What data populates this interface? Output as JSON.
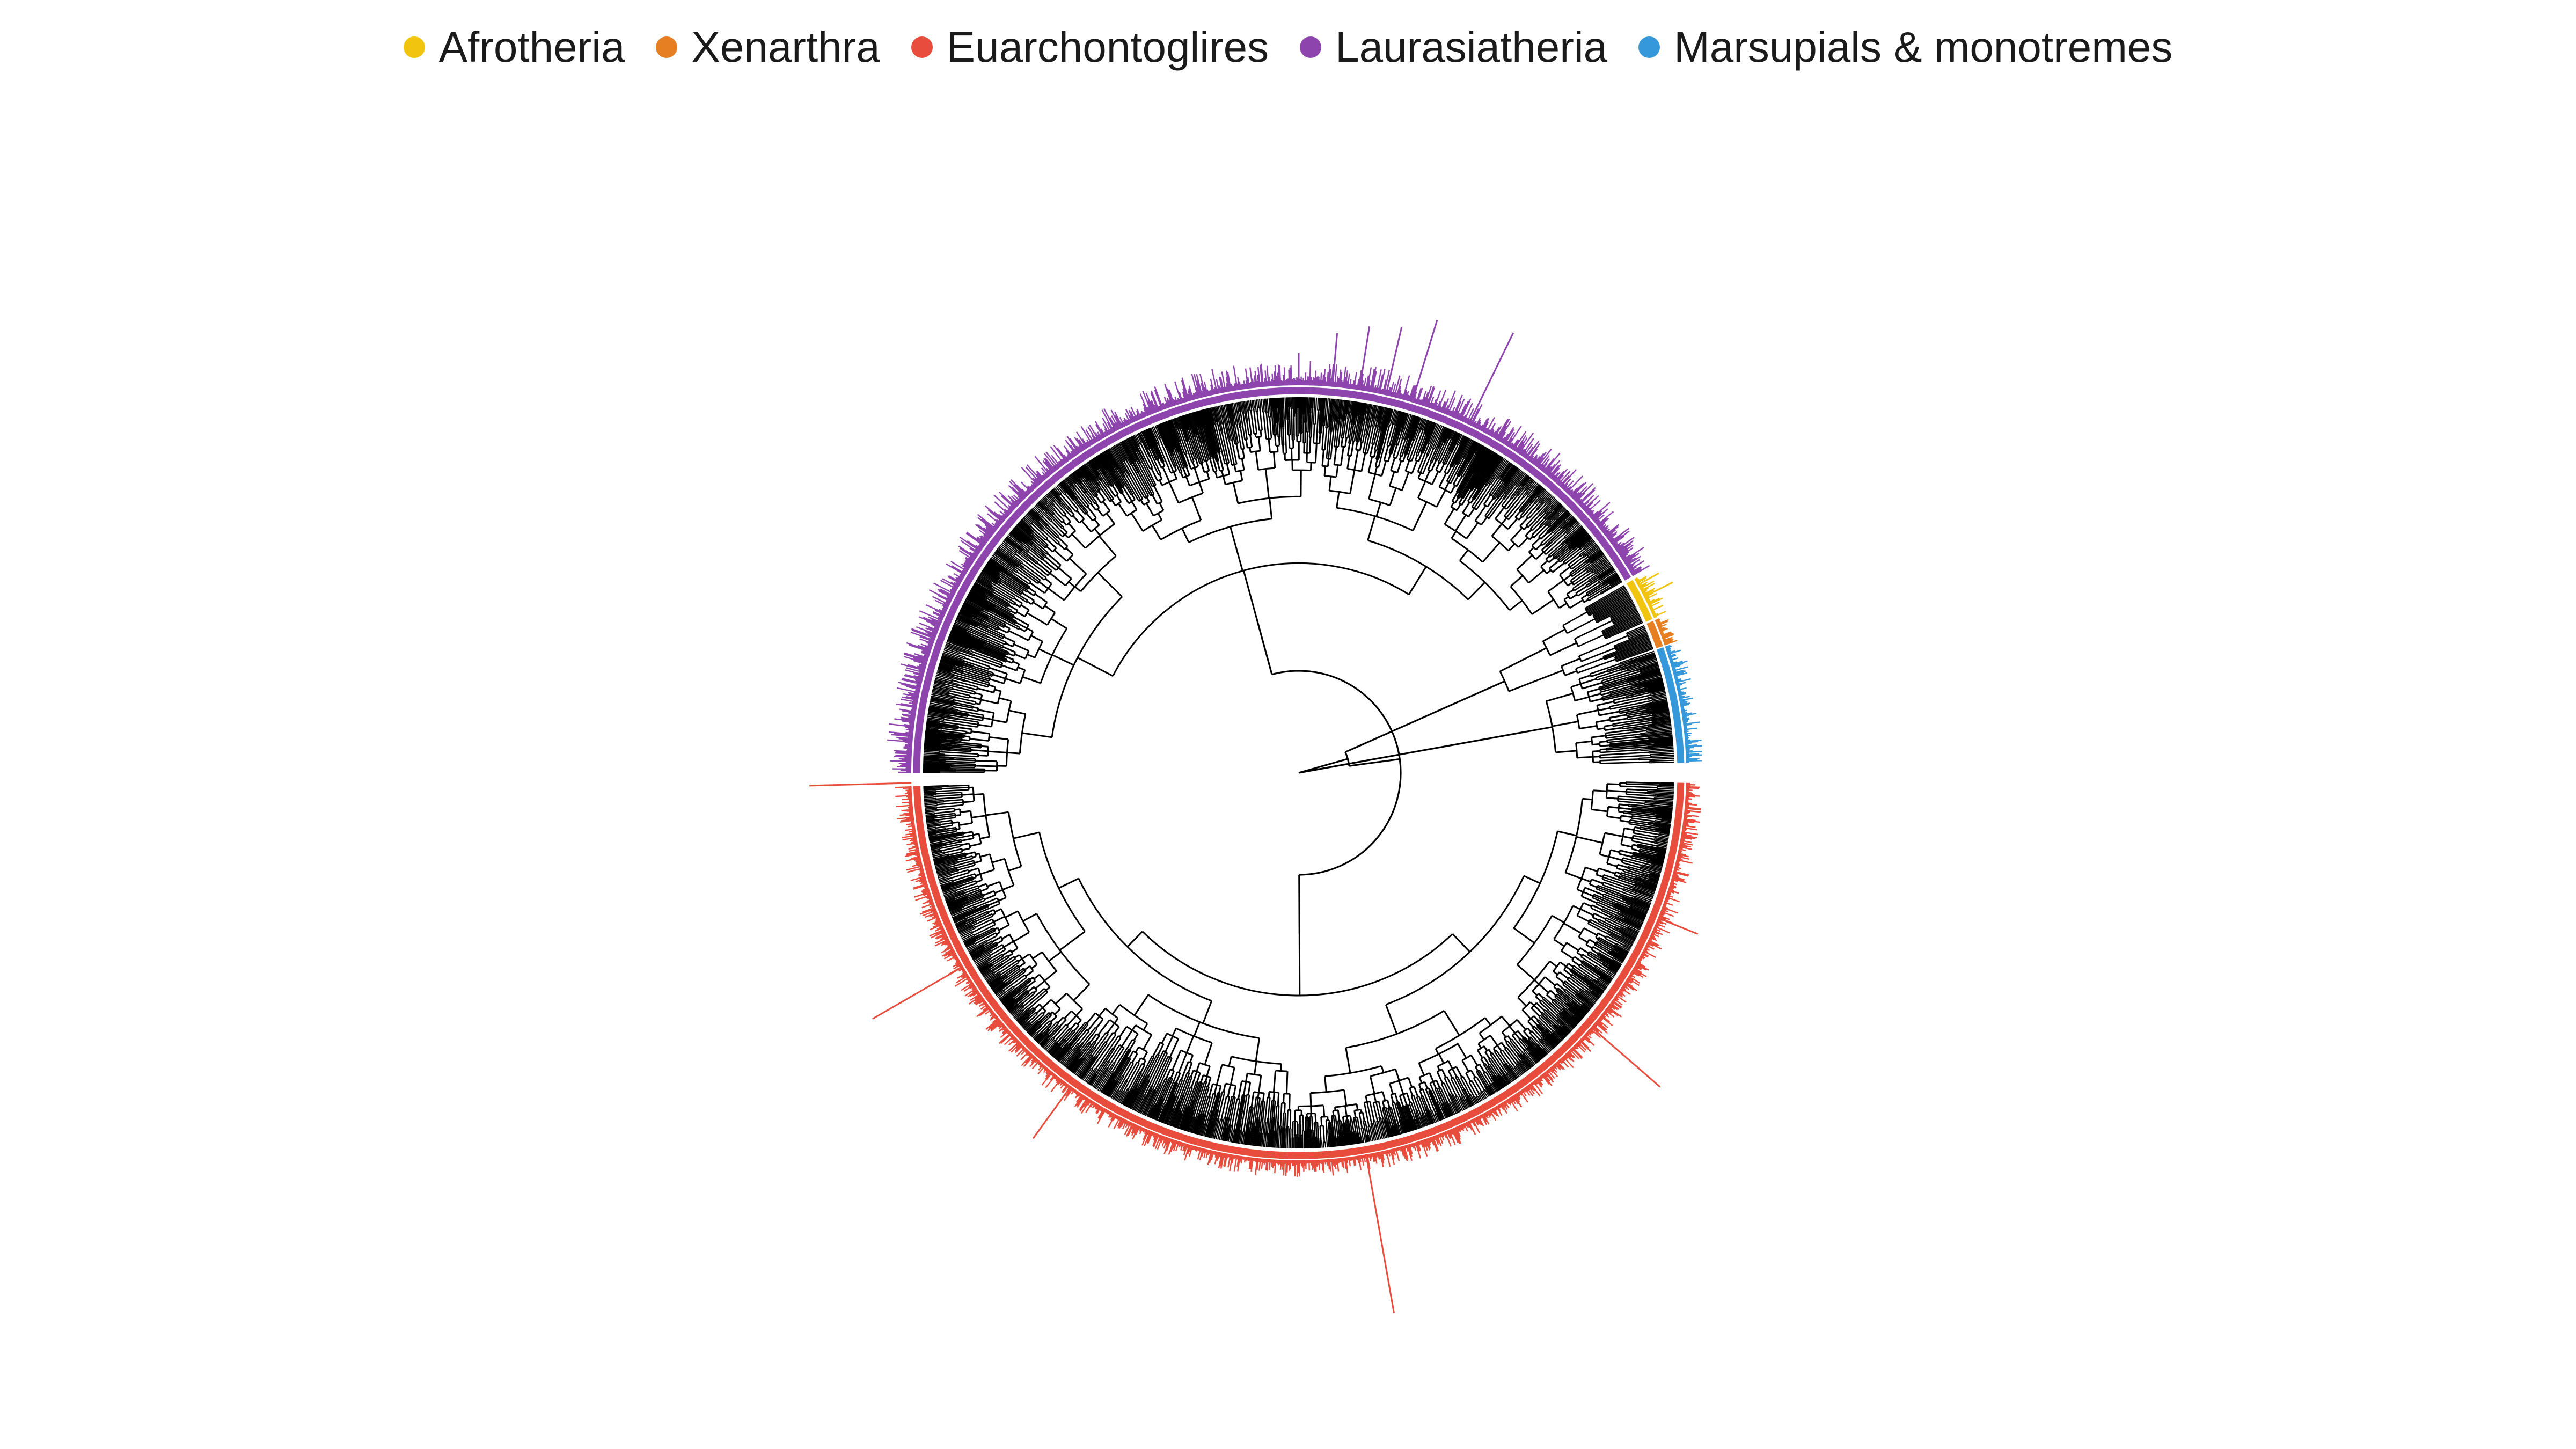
{
  "legend": {
    "items": [
      {
        "key": "afrotheria",
        "label": "Afrotheria",
        "color": "#f1c40f"
      },
      {
        "key": "xenarthra",
        "label": "Xenarthra",
        "color": "#e67e22"
      },
      {
        "key": "euarchontoglires",
        "label": "Euarchontoglires",
        "color": "#e74c3c"
      },
      {
        "key": "laurasiatheria",
        "label": "Laurasiatheria",
        "color": "#8e44ad"
      },
      {
        "key": "marsupials",
        "label": "Marsupials & monotremes",
        "color": "#3498db"
      }
    ]
  },
  "tree": {
    "style": "circular-phylogeny",
    "branch_color": "#000000",
    "outer_bars": "per-tip values shown as radial bars colored by clade",
    "clade_order_clockwise_from_east": [
      "euarchontoglires",
      "laurasiatheria",
      "afrotheria",
      "xenarthra",
      "marsupials"
    ]
  }
}
